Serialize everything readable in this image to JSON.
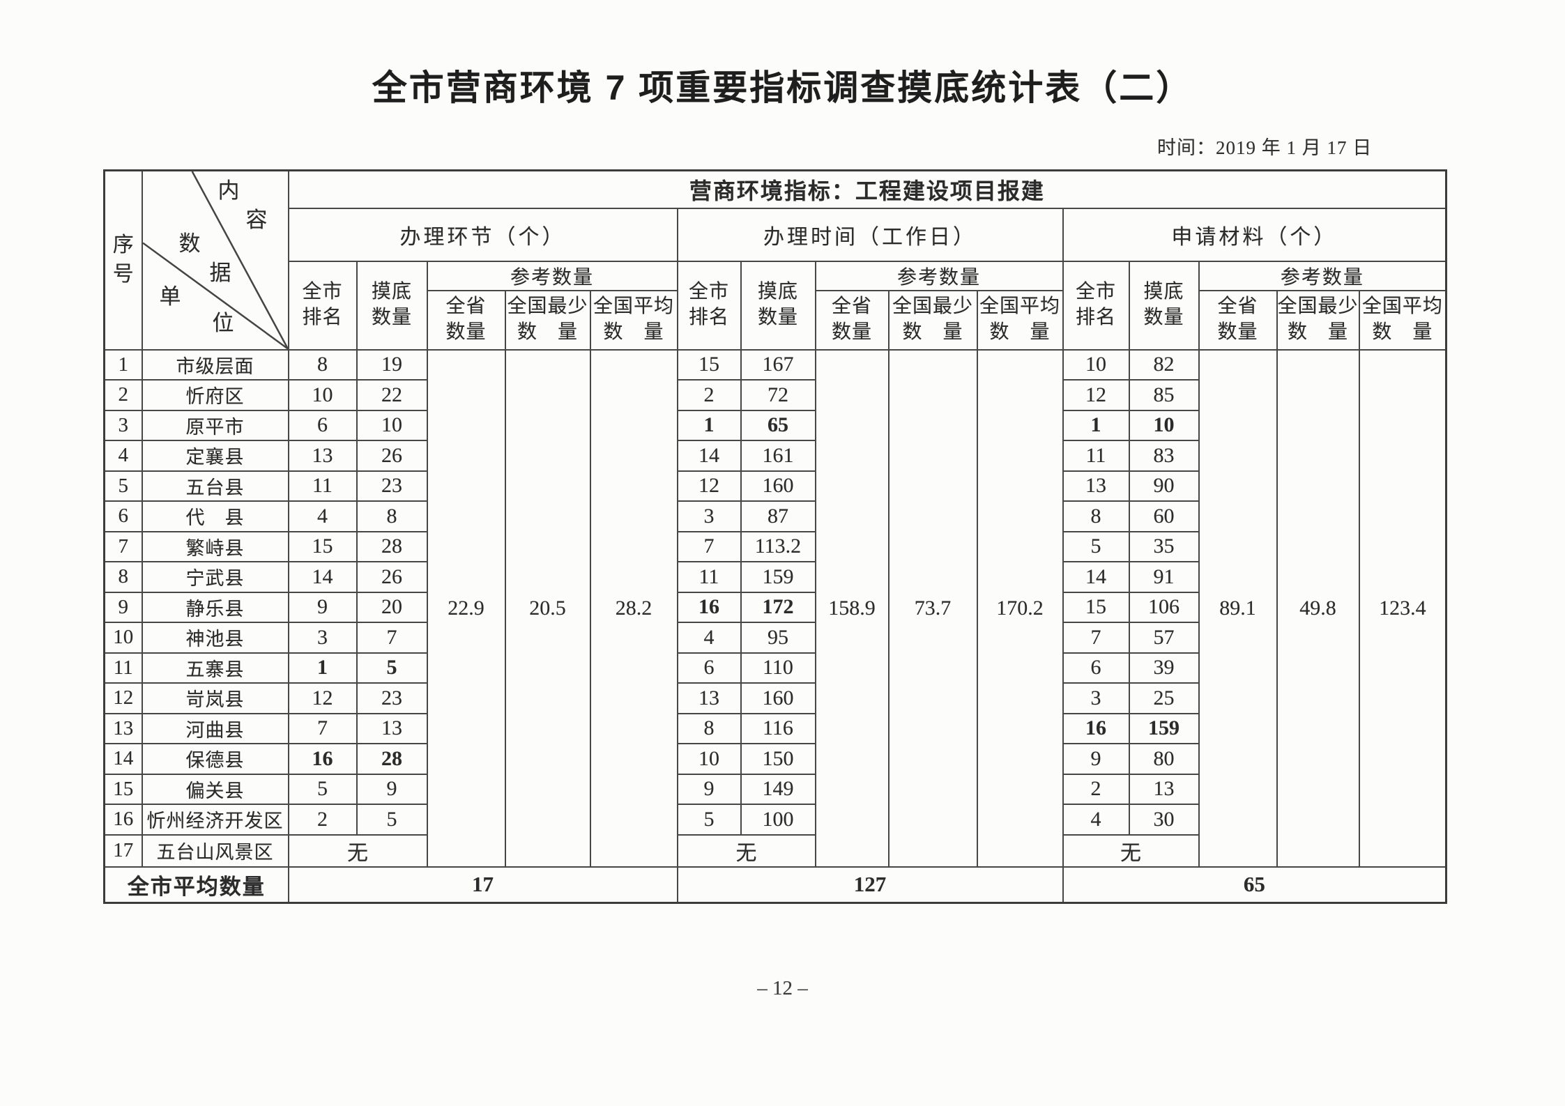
{
  "page": {
    "title": "全市营商环境 7 项重要指标调查摸底统计表（二）",
    "date_label": "时间：2019 年 1 月 17 日",
    "page_number": "– 12 –",
    "ink_color": "#2b2b2b"
  },
  "table": {
    "corner": {
      "seq": [
        "序",
        "号"
      ],
      "diag": [
        "内",
        "容",
        "数",
        "据",
        "单",
        "位"
      ]
    },
    "banner": "营商环境指标：工程建设项目报建",
    "groups": [
      {
        "title": "办理环节（个）"
      },
      {
        "title": "办理时间（工作日）"
      },
      {
        "title": "申请材料（个）"
      }
    ],
    "sub": {
      "rank": [
        "全市",
        "排名"
      ],
      "base": [
        "摸底",
        "数量"
      ],
      "ref": "参考数量",
      "prov": [
        "全省",
        "数量"
      ],
      "nat_min": [
        "全国最少",
        "数　量"
      ],
      "nat_avg": [
        "全国平均",
        "数　量"
      ]
    },
    "rows": [
      {
        "seq": "1",
        "unit": "市级层面",
        "s1": [
          "8",
          "19"
        ],
        "s2": [
          "15",
          "167"
        ],
        "s3": [
          "10",
          "82"
        ]
      },
      {
        "seq": "2",
        "unit": "忻府区",
        "s1": [
          "10",
          "22"
        ],
        "s2": [
          "2",
          "72"
        ],
        "s3": [
          "12",
          "85"
        ]
      },
      {
        "seq": "3",
        "unit": "原平市",
        "s1": [
          "6",
          "10"
        ],
        "s2": [
          "1",
          "65"
        ],
        "s3": [
          "1",
          "10"
        ],
        "bold": [
          "s2",
          "s3"
        ]
      },
      {
        "seq": "4",
        "unit": "定襄县",
        "s1": [
          "13",
          "26"
        ],
        "s2": [
          "14",
          "161"
        ],
        "s3": [
          "11",
          "83"
        ]
      },
      {
        "seq": "5",
        "unit": "五台县",
        "s1": [
          "11",
          "23"
        ],
        "s2": [
          "12",
          "160"
        ],
        "s3": [
          "13",
          "90"
        ]
      },
      {
        "seq": "6",
        "unit": "代　县",
        "s1": [
          "4",
          "8"
        ],
        "s2": [
          "3",
          "87"
        ],
        "s3": [
          "8",
          "60"
        ]
      },
      {
        "seq": "7",
        "unit": "繁峙县",
        "s1": [
          "15",
          "28"
        ],
        "s2": [
          "7",
          "113.2"
        ],
        "s3": [
          "5",
          "35"
        ]
      },
      {
        "seq": "8",
        "unit": "宁武县",
        "s1": [
          "14",
          "26"
        ],
        "s2": [
          "11",
          "159"
        ],
        "s3": [
          "14",
          "91"
        ]
      },
      {
        "seq": "9",
        "unit": "静乐县",
        "s1": [
          "9",
          "20"
        ],
        "s2": [
          "16",
          "172"
        ],
        "s3": [
          "15",
          "106"
        ],
        "bold": [
          "s2"
        ]
      },
      {
        "seq": "10",
        "unit": "神池县",
        "s1": [
          "3",
          "7"
        ],
        "s2": [
          "4",
          "95"
        ],
        "s3": [
          "7",
          "57"
        ]
      },
      {
        "seq": "11",
        "unit": "五寨县",
        "s1": [
          "1",
          "5"
        ],
        "s2": [
          "6",
          "110"
        ],
        "s3": [
          "6",
          "39"
        ],
        "bold": [
          "s1"
        ]
      },
      {
        "seq": "12",
        "unit": "岢岚县",
        "s1": [
          "12",
          "23"
        ],
        "s2": [
          "13",
          "160"
        ],
        "s3": [
          "3",
          "25"
        ]
      },
      {
        "seq": "13",
        "unit": "河曲县",
        "s1": [
          "7",
          "13"
        ],
        "s2": [
          "8",
          "116"
        ],
        "s3": [
          "16",
          "159"
        ],
        "bold": [
          "s3"
        ]
      },
      {
        "seq": "14",
        "unit": "保德县",
        "s1": [
          "16",
          "28"
        ],
        "s2": [
          "10",
          "150"
        ],
        "s3": [
          "9",
          "80"
        ],
        "bold": [
          "s1"
        ]
      },
      {
        "seq": "15",
        "unit": "偏关县",
        "s1": [
          "5",
          "9"
        ],
        "s2": [
          "9",
          "149"
        ],
        "s3": [
          "2",
          "13"
        ]
      },
      {
        "seq": "16",
        "unit": "忻州经济开发区",
        "s1": [
          "2",
          "5"
        ],
        "s2": [
          "5",
          "100"
        ],
        "s3": [
          "4",
          "30"
        ]
      },
      {
        "seq": "17",
        "unit": "五台山风景区",
        "merged": "无"
      }
    ],
    "ref_values": {
      "s1": [
        "22.9",
        "20.5",
        "28.2"
      ],
      "s2": [
        "158.9",
        "73.7",
        "170.2"
      ],
      "s3": [
        "89.1",
        "49.8",
        "123.4"
      ]
    },
    "summary": {
      "label": "全市平均数量",
      "values": [
        "17",
        "127",
        "65"
      ]
    }
  }
}
